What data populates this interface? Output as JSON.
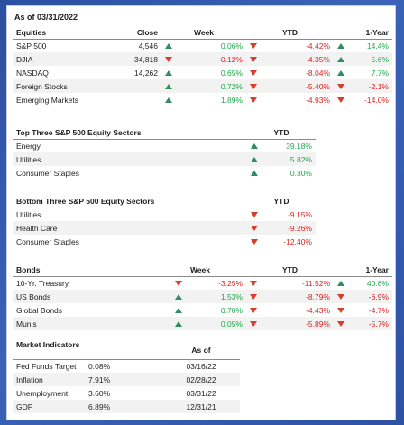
{
  "as_of": "As of 03/31/2022",
  "equities": {
    "headers": [
      "Equities",
      "Close",
      "Week",
      "YTD",
      "1-Year"
    ],
    "rows": [
      {
        "name": "S&P 500",
        "close": "4,546",
        "week": "0.06%",
        "week_dir": "up",
        "ytd": "-4.42%",
        "ytd_dir": "down",
        "year": "14.4%",
        "year_dir": "up"
      },
      {
        "name": "DJIA",
        "close": "34,818",
        "week": "-0.12%",
        "week_dir": "down",
        "ytd": "-4.35%",
        "ytd_dir": "down",
        "year": "5.6%",
        "year_dir": "up"
      },
      {
        "name": "NASDAQ",
        "close": "14,262",
        "week": "0.65%",
        "week_dir": "up",
        "ytd": "-8.04%",
        "ytd_dir": "down",
        "year": "7.7%",
        "year_dir": "up"
      },
      {
        "name": "Foreign Stocks",
        "close": "",
        "week": "0.72%",
        "week_dir": "up",
        "ytd": "-5.40%",
        "ytd_dir": "down",
        "year": "-2.1%",
        "year_dir": "down"
      },
      {
        "name": "Emerging Markets",
        "close": "",
        "week": "1.89%",
        "week_dir": "up",
        "ytd": "-4.93%",
        "ytd_dir": "down",
        "year": "-14.0%",
        "year_dir": "down"
      }
    ]
  },
  "top_sectors": {
    "headers": [
      "Top Three S&P 500 Equity Sectors",
      "YTD"
    ],
    "rows": [
      {
        "name": "Energy",
        "ytd": "39.18%",
        "ytd_dir": "up"
      },
      {
        "name": "Utilities",
        "ytd": "5.82%",
        "ytd_dir": "up"
      },
      {
        "name": "Consumer Staples",
        "ytd": "0.30%",
        "ytd_dir": "up"
      }
    ]
  },
  "bottom_sectors": {
    "headers": [
      "Bottom Three S&P 500 Equity Sectors",
      "YTD"
    ],
    "rows": [
      {
        "name": "Utilities",
        "ytd": "-9.15%",
        "ytd_dir": "down"
      },
      {
        "name": "Health Care",
        "ytd": "-9.26%",
        "ytd_dir": "down"
      },
      {
        "name": "Consumer Staples",
        "ytd": "-12.40%",
        "ytd_dir": "down"
      }
    ]
  },
  "bonds": {
    "headers": [
      "Bonds",
      "Week",
      "YTD",
      "1-Year"
    ],
    "rows": [
      {
        "name": "10-Yr. Treasury",
        "week": "-3.25%",
        "week_dir": "down",
        "ytd": "-11.52%",
        "ytd_dir": "down",
        "year": "40.8%",
        "year_dir": "up"
      },
      {
        "name": "US Bonds",
        "week": "1.53%",
        "week_dir": "up",
        "ytd": "-8.79%",
        "ytd_dir": "down",
        "year": "-6.9%",
        "year_dir": "down"
      },
      {
        "name": "Global Bonds",
        "week": "0.70%",
        "week_dir": "up",
        "ytd": "-4.43%",
        "ytd_dir": "down",
        "year": "-4.7%",
        "year_dir": "down"
      },
      {
        "name": "Munis",
        "week": "0.05%",
        "week_dir": "up",
        "ytd": "-5.89%",
        "ytd_dir": "down",
        "year": "-5.7%",
        "year_dir": "down"
      }
    ]
  },
  "market": {
    "headers": [
      "Market Indicators",
      "",
      "As of"
    ],
    "rows": [
      {
        "name": "Fed Funds Target",
        "value": "0.08%",
        "date": "03/16/22"
      },
      {
        "name": "Inflation",
        "value": "7.91%",
        "date": "02/28/22"
      },
      {
        "name": "Unemployment",
        "value": "3.60%",
        "date": "03/31/22"
      },
      {
        "name": "GDP",
        "value": "6.89%",
        "date": "12/31/21"
      }
    ]
  },
  "colors": {
    "up": "#1ea84a",
    "down": "#e02020",
    "arrow_up": "#2f8f5e",
    "arrow_down": "#d6402a",
    "background": "#2b4fa0"
  }
}
